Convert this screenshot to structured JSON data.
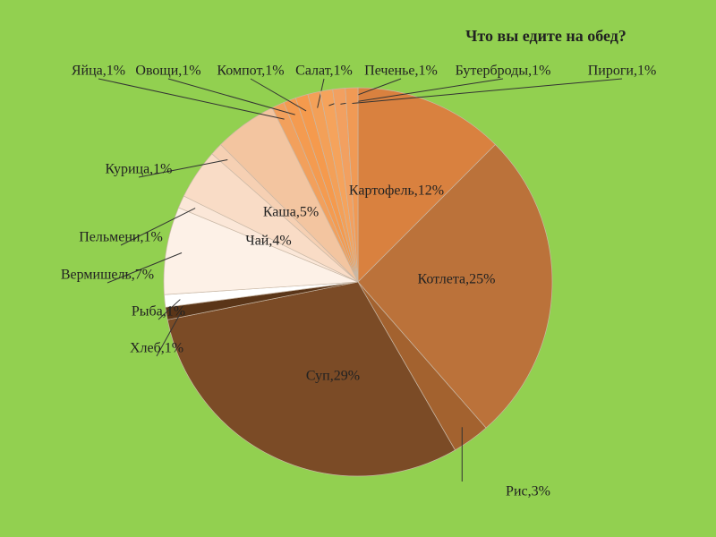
{
  "chart_data": {
    "type": "pie",
    "title": "Что вы едите на обед?",
    "labels": [
      "Картофель,12%",
      "Котлета,25%",
      "Рис,3%",
      "Суп,29%",
      "Хлеб,1%",
      "Рыба,1%",
      "Вермишель,7%",
      "Пельмени,1%",
      "Чай,4%",
      "Курица,1%",
      "Каша,5%",
      "Яйца,1%",
      "Овощи,1%",
      "Компот,1%",
      "Салат,1%",
      "Печенье,1%",
      "Бутерброды,1%",
      "Пироги,1%"
    ],
    "values": [
      12,
      25,
      3,
      29,
      1,
      1,
      7,
      1,
      4,
      1,
      5,
      1,
      1,
      1,
      1,
      1,
      1,
      1
    ],
    "colors": [
      "#d9813f",
      "#bb723a",
      "#a3622f",
      "#7b4b26",
      "#5a3518",
      "#ffffff",
      "#fdf1e7",
      "#fbe7d8",
      "#f9dcc6",
      "#f6d0b3",
      "#f3c5a0",
      "#f2a05c",
      "#f49b50",
      "#f59a4d",
      "#f3a058",
      "#f5a35c",
      "#f2a060",
      "#f09a55"
    ]
  }
}
